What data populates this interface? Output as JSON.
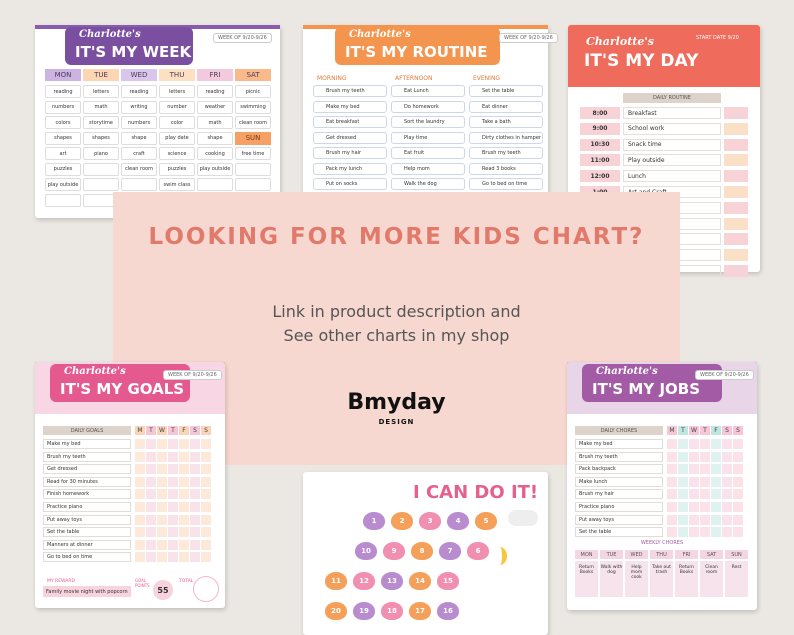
{
  "week": {
    "name": "Charlotte's",
    "title": "IT'S MY WEEK",
    "week_of": "WEEK OF 9/20-9/26",
    "days": [
      "MON",
      "TUE",
      "WED",
      "THU",
      "FRI",
      "SAT"
    ],
    "sun": "SUN",
    "rows": [
      [
        "reading",
        "letters",
        "reading",
        "letters",
        "reading",
        "picnic"
      ],
      [
        "numbers",
        "math",
        "writing",
        "number",
        "weather",
        "swimming"
      ],
      [
        "colors",
        "storytime",
        "numbers",
        "color",
        "math",
        "clean room"
      ],
      [
        "shapes",
        "shapes",
        "shape",
        "play date",
        "shape",
        null
      ],
      [
        "art",
        "piano",
        "craft",
        "science",
        "cooking",
        "free time"
      ],
      [
        "puzzles",
        null,
        "clean room",
        "puzzles",
        "play outside",
        null
      ],
      [
        "play outside",
        null,
        null,
        "swim class",
        null,
        null
      ],
      [
        null,
        null,
        null,
        null,
        null,
        null
      ]
    ]
  },
  "routine": {
    "name": "Charlotte's",
    "title": "IT'S MY ROUTINE",
    "week_of": "WEEK OF 9/20-9/26",
    "sections": [
      {
        "label": "MORNING",
        "items": [
          "Brush my teeth",
          "Make my bed",
          "Eat breakfast",
          "Get dressed",
          "Brush my hair",
          "Pack my lunch",
          "Put on socks"
        ]
      },
      {
        "label": "AFTERNOON",
        "items": [
          "Eat Lunch",
          "Do homework",
          "Sort the laundry",
          "Play time",
          "Eat fruit",
          "Help mom",
          "Walk the dog"
        ]
      },
      {
        "label": "EVENING",
        "items": [
          "Set the table",
          "Eat dinner",
          "Take a bath",
          "Dirty clothes in hamper",
          "Brush my teeth",
          "Read 3 books",
          "Go to bed on time"
        ]
      }
    ]
  },
  "day": {
    "name": "Charlotte's",
    "title": "IT'S MY DAY",
    "start": "START DATE 9/20",
    "header": "DAILY ROUTINE",
    "rows": [
      [
        "8:00",
        "Breakfast"
      ],
      [
        "9:00",
        "School work"
      ],
      [
        "10:30",
        "Snack time"
      ],
      [
        "11:00",
        "Play outside"
      ],
      [
        "12:00",
        "Lunch"
      ],
      [
        "1:00",
        "Art and Craft"
      ],
      [
        null,
        null
      ],
      [
        null,
        null
      ],
      [
        null,
        null
      ],
      [
        null,
        null
      ],
      [
        null,
        null
      ]
    ]
  },
  "banner": {
    "title": "LOOKING FOR MORE KIDS CHART?",
    "line1": "Link in product description and",
    "line2": "See other charts in my shop",
    "logo": "Bmyday",
    "logo_sub": "DESIGN"
  },
  "goals": {
    "name": "Charlotte's",
    "title": "IT'S MY GOALS",
    "week_of": "WEEK OF 9/20-9/26",
    "header": "DAILY GOALS",
    "days": [
      "M",
      "T",
      "W",
      "T",
      "F",
      "S",
      "S"
    ],
    "items": [
      "Make my bed",
      "Brush my teeth",
      "Get dressed",
      "Read for 30 minutes",
      "Finish homework",
      "Practice piano",
      "Put away toys",
      "Set the table",
      "Manners at dinner",
      "Go to bed on time"
    ],
    "reward_label": "MY REWARD",
    "reward": "Family movie night with popcorn",
    "points_label": "GOAL POINTS",
    "points": 55,
    "total_label": "TOTAL"
  },
  "jobs": {
    "name": "Charlotte's",
    "title": "IT'S MY JOBS",
    "week_of": "WEEK OF 9/20-9/26",
    "header": "DAILY CHORES",
    "days": [
      "M",
      "T",
      "W",
      "T",
      "F",
      "S",
      "S"
    ],
    "items": [
      "Make my bed",
      "Brush my teeth",
      "Pack backpack",
      "Make lunch",
      "Brush my hair",
      "Practice piano",
      "Put away toys",
      "Set the table"
    ],
    "weekly_header": "WEEKLY CHORES",
    "weekly_days": [
      "MON",
      "TUE",
      "WED",
      "THU",
      "FRI",
      "SAT",
      "SUN"
    ],
    "weekly": [
      "Return Books",
      "Walk with dog",
      "Help mom cook",
      "Take out trash",
      "Return Books",
      "Clean room",
      "Rest"
    ]
  },
  "cando": {
    "title": "I CAN DO IT!",
    "steps": [
      1,
      2,
      3,
      4,
      5,
      6,
      7,
      8,
      9,
      10,
      11,
      12,
      13,
      14,
      15,
      16,
      17,
      18,
      19,
      20
    ]
  }
}
